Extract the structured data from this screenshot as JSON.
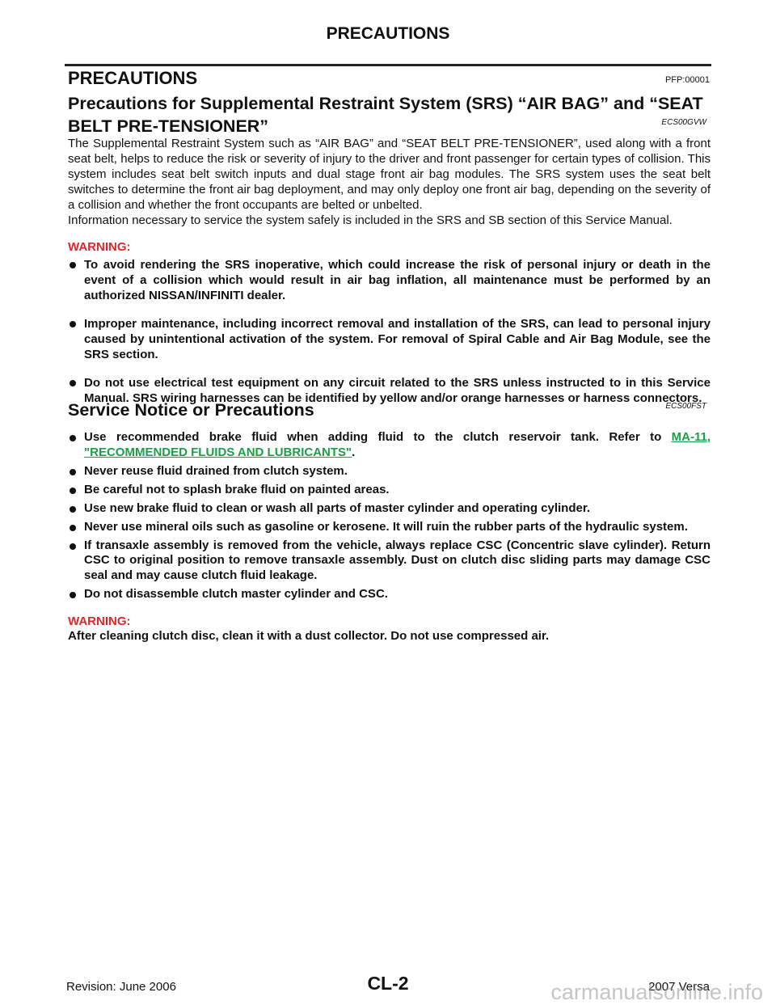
{
  "header": {
    "title": "PRECAUTIONS"
  },
  "section": {
    "title": "PRECAUTIONS",
    "code": "PFP:00001"
  },
  "subsections": [
    {
      "title": "Precautions for Supplemental Restraint System (SRS) “AIR BAG” and “SEAT BELT PRE-TENSIONER”",
      "code": "ECS00GVW",
      "paragraphs": [
        "The Supplemental Restraint System such as “AIR BAG” and “SEAT BELT PRE-TENSIONER”, used along with a front seat belt, helps to reduce the risk or severity of injury to the driver and front passenger for certain types of collision. This system includes seat belt switch inputs and dual stage front air bag modules. The SRS system uses the seat belt switches to determine the front air bag deployment, and may only deploy one front air bag, depending on the severity of a collision and whether the front occupants are belted or unbelted.",
        "Information necessary to service the system safely is included in the SRS and SB section of this Service Manual."
      ],
      "warning": "WARNING:",
      "bullets": [
        "To avoid rendering the SRS inoperative, which could increase the risk of personal injury or death in the event of a collision which would result in air bag inflation, all maintenance must be performed by an authorized NISSAN/INFINITI dealer.",
        "Improper maintenance, including incorrect removal and installation of the SRS, can lead to personal injury caused by unintentional activation of the system. For removal of Spiral Cable and Air Bag Module, see the SRS section.",
        "Do not use electrical test equipment on any circuit related to the SRS unless instructed to in this Service Manual. SRS wiring harnesses can be identified by yellow and/or orange harnesses or harness connectors."
      ]
    },
    {
      "title": "Service Notice or Precautions",
      "code": "ECS00FST",
      "bullets": [
        {
          "text": "Use recommended brake fluid when adding fluid to the clutch reservoir tank. Refer to",
          "link": "MA-11, \"RECOMMENDED FLUIDS AND LUBRICANTS\"",
          "after": "."
        },
        "Never reuse fluid drained from clutch system.",
        "Be careful not to splash brake fluid on painted areas.",
        "Use new brake fluid to clean or wash all parts of master cylinder and operating cylinder.",
        "Never use mineral oils such as gasoline or kerosene. It will ruin the rubber parts of the hydraulic system.",
        "If transaxle assembly is removed from the vehicle, always replace CSC (Concentric slave cylinder). Return CSC to original position to remove transaxle assembly. Dust on clutch disc sliding parts may damage CSC seal and may cause clutch fluid leakage.",
        "Do not disassemble clutch master cylinder and CSC."
      ],
      "warning": "WARNING:",
      "warning_text": "After cleaning clutch disc, clean it with a dust collector. Do not use compressed air."
    }
  ],
  "footer": {
    "page": "CL-2",
    "revision": "Revision: June 2006",
    "model": "2007 Versa",
    "watermark": "carmanualsonline.info"
  }
}
